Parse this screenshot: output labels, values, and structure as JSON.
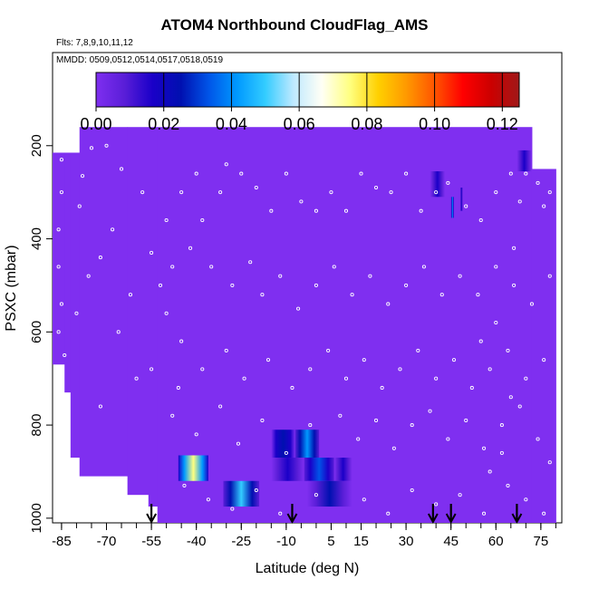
{
  "chart_data": {
    "type": "heatmap",
    "title": "ATOM4 Northbound CloudFlag_AMS",
    "subtitle_flights": "Flts: 7,8,9,10,11,12",
    "subtitle_dates": "MMDD: 0509,0512,0514,0517,0518,0519",
    "xlabel": "Latitude (deg N)",
    "ylabel": "PSXC (mbar)",
    "xlim": [
      -88,
      82
    ],
    "ylim": [
      1010,
      0
    ],
    "x_ticks": [
      -85,
      -70,
      -55,
      -40,
      -25,
      -10,
      5,
      15,
      30,
      45,
      60,
      75
    ],
    "y_ticks": [
      200,
      400,
      600,
      800,
      1000
    ],
    "colorbar": {
      "min": 0.0,
      "max": 0.125,
      "ticks": [
        "0.00",
        "0.02",
        "0.04",
        "0.06",
        "0.08",
        "0.10",
        "0.12"
      ],
      "colors": [
        "#7f2ff0",
        "#5a1ed8",
        "#1a00c8",
        "#0010b0",
        "#0055e8",
        "#0099ff",
        "#33ccff",
        "#bfe9ff",
        "#fffff5",
        "#ffff80",
        "#ffd000",
        "#ff9900",
        "#ff5500",
        "#ff0000",
        "#cc0000",
        "#a01818"
      ]
    },
    "background_value": 0.0,
    "coverage": [
      {
        "lat_start": -88,
        "lat_end": -84,
        "p_top": 215,
        "p_bottom": 670
      },
      {
        "lat_start": -84,
        "lat_end": -82,
        "p_top": 215,
        "p_bottom": 730
      },
      {
        "lat_start": -82,
        "lat_end": -79,
        "p_top": 215,
        "p_bottom": 870
      },
      {
        "lat_start": -79,
        "lat_end": -63,
        "p_top": 160,
        "p_bottom": 910
      },
      {
        "lat_start": -63,
        "lat_end": -56,
        "p_top": 160,
        "p_bottom": 950
      },
      {
        "lat_start": -56,
        "lat_end": -53,
        "p_top": 160,
        "p_bottom": 975
      },
      {
        "lat_start": -53,
        "lat_end": 72,
        "p_top": 160,
        "p_bottom": 1010
      },
      {
        "lat_start": 72,
        "lat_end": 80,
        "p_top": 250,
        "p_bottom": 1010
      }
    ],
    "cloud_cells": [
      {
        "lat_start": -46,
        "lat_end": -36,
        "p_top": 865,
        "p_bottom": 920,
        "peak": 0.075
      },
      {
        "lat_start": -31,
        "lat_end": -19,
        "p_top": 920,
        "p_bottom": 975,
        "peak": 0.05
      },
      {
        "lat_start": -15,
        "lat_end": -7,
        "p_top": 810,
        "p_bottom": 870,
        "peak": 0.03
      },
      {
        "lat_start": -7,
        "lat_end": 1,
        "p_top": 810,
        "p_bottom": 870,
        "peak": 0.045
      },
      {
        "lat_start": -15,
        "lat_end": -4,
        "p_top": 870,
        "p_bottom": 920,
        "peak": 0.02
      },
      {
        "lat_start": -4,
        "lat_end": 6,
        "p_top": 870,
        "p_bottom": 920,
        "peak": 0.035
      },
      {
        "lat_start": 6,
        "lat_end": 12,
        "p_top": 870,
        "p_bottom": 920,
        "peak": 0.02
      },
      {
        "lat_start": -3,
        "lat_end": 12,
        "p_top": 920,
        "p_bottom": 975,
        "peak": 0.025
      },
      {
        "lat_start": 38,
        "lat_end": 43,
        "p_top": 255,
        "p_bottom": 310,
        "peak": 0.02
      },
      {
        "lat_start": 45,
        "lat_end": 46,
        "p_top": 310,
        "p_bottom": 355,
        "peak": 0.04
      },
      {
        "lat_start": 48,
        "lat_end": 49,
        "p_top": 290,
        "p_bottom": 340,
        "peak": 0.02
      },
      {
        "lat_start": 67,
        "lat_end": 72,
        "p_top": 210,
        "p_bottom": 255,
        "peak": 0.02
      }
    ],
    "sample_points": [
      [
        -85,
        230
      ],
      [
        -80,
        210
      ],
      [
        -78,
        265
      ],
      [
        -75,
        205
      ],
      [
        -70,
        200
      ],
      [
        -65,
        250
      ],
      [
        -85,
        300
      ],
      [
        -86,
        380
      ],
      [
        -86,
        460
      ],
      [
        -85,
        540
      ],
      [
        -86,
        600
      ],
      [
        -84,
        650
      ],
      [
        -79,
        330
      ],
      [
        -72,
        440
      ],
      [
        -80,
        560
      ],
      [
        -76,
        480
      ],
      [
        -68,
        380
      ],
      [
        -62,
        520
      ],
      [
        -58,
        300
      ],
      [
        -66,
        600
      ],
      [
        -60,
        700
      ],
      [
        -72,
        760
      ],
      [
        -55,
        680
      ],
      [
        -50,
        560
      ],
      [
        -45,
        300
      ],
      [
        -50,
        360
      ],
      [
        -40,
        260
      ],
      [
        -38,
        360
      ],
      [
        -32,
        300
      ],
      [
        -30,
        240
      ],
      [
        -25,
        260
      ],
      [
        -20,
        290
      ],
      [
        -15,
        340
      ],
      [
        -10,
        260
      ],
      [
        -5,
        320
      ],
      [
        0,
        340
      ],
      [
        5,
        300
      ],
      [
        10,
        340
      ],
      [
        15,
        260
      ],
      [
        20,
        290
      ],
      [
        25,
        300
      ],
      [
        30,
        260
      ],
      [
        35,
        340
      ],
      [
        40,
        300
      ],
      [
        44,
        280
      ],
      [
        50,
        330
      ],
      [
        55,
        360
      ],
      [
        60,
        300
      ],
      [
        65,
        260
      ],
      [
        68,
        320
      ],
      [
        70,
        260
      ],
      [
        74,
        280
      ],
      [
        76,
        330
      ],
      [
        78,
        300
      ],
      [
        -42,
        420
      ],
      [
        -35,
        460
      ],
      [
        -28,
        500
      ],
      [
        -22,
        450
      ],
      [
        -18,
        520
      ],
      [
        -12,
        480
      ],
      [
        -6,
        550
      ],
      [
        0,
        500
      ],
      [
        6,
        460
      ],
      [
        12,
        520
      ],
      [
        18,
        480
      ],
      [
        24,
        540
      ],
      [
        30,
        500
      ],
      [
        36,
        460
      ],
      [
        42,
        520
      ],
      [
        48,
        480
      ],
      [
        54,
        520
      ],
      [
        60,
        460
      ],
      [
        66,
        500
      ],
      [
        72,
        540
      ],
      [
        78,
        480
      ],
      [
        -45,
        620
      ],
      [
        -38,
        680
      ],
      [
        -30,
        640
      ],
      [
        -24,
        700
      ],
      [
        -16,
        660
      ],
      [
        -8,
        720
      ],
      [
        -2,
        680
      ],
      [
        4,
        640
      ],
      [
        10,
        700
      ],
      [
        16,
        660
      ],
      [
        22,
        720
      ],
      [
        28,
        680
      ],
      [
        34,
        640
      ],
      [
        40,
        700
      ],
      [
        46,
        660
      ],
      [
        52,
        720
      ],
      [
        58,
        680
      ],
      [
        64,
        640
      ],
      [
        70,
        700
      ],
      [
        76,
        660
      ],
      [
        -48,
        780
      ],
      [
        -40,
        820
      ],
      [
        -32,
        760
      ],
      [
        -26,
        840
      ],
      [
        -18,
        790
      ],
      [
        -10,
        860
      ],
      [
        -2,
        800
      ],
      [
        8,
        780
      ],
      [
        14,
        830
      ],
      [
        20,
        790
      ],
      [
        26,
        850
      ],
      [
        32,
        800
      ],
      [
        38,
        770
      ],
      [
        44,
        830
      ],
      [
        50,
        790
      ],
      [
        56,
        850
      ],
      [
        62,
        800
      ],
      [
        68,
        760
      ],
      [
        74,
        830
      ],
      [
        78,
        880
      ],
      [
        -44,
        930
      ],
      [
        -36,
        960
      ],
      [
        -28,
        980
      ],
      [
        -20,
        940
      ],
      [
        -12,
        990
      ],
      [
        0,
        950
      ],
      [
        16,
        960
      ],
      [
        24,
        990
      ],
      [
        32,
        940
      ],
      [
        40,
        970
      ],
      [
        48,
        950
      ],
      [
        56,
        990
      ],
      [
        64,
        930
      ],
      [
        70,
        960
      ],
      [
        76,
        990
      ],
      [
        60,
        580
      ],
      [
        55,
        620
      ],
      [
        65,
        740
      ],
      [
        62,
        860
      ],
      [
        58,
        900
      ],
      [
        66,
        420
      ],
      [
        -55,
        430
      ],
      [
        -52,
        500
      ],
      [
        -48,
        460
      ],
      [
        -46,
        720
      ]
    ],
    "markers_lat": [
      -55,
      -8,
      39,
      45,
      67
    ]
  }
}
